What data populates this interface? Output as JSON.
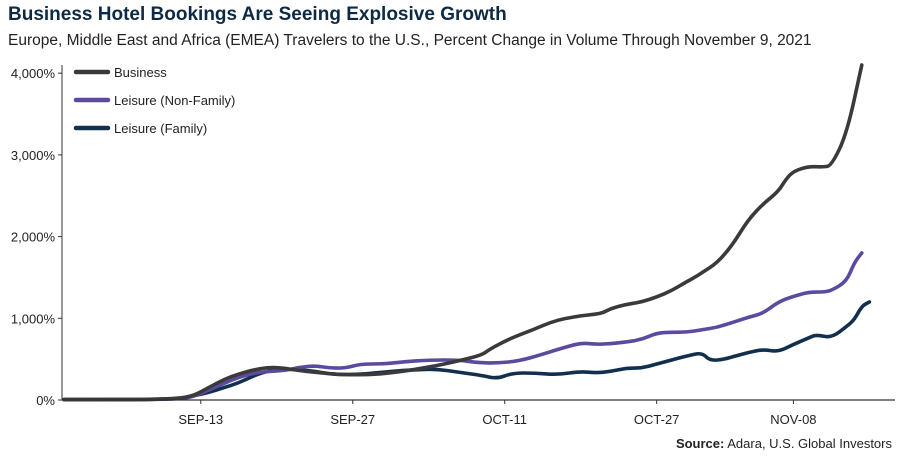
{
  "title": "Business Hotel Bookings Are Seeing Explosive Growth",
  "subtitle": "Europe, Middle East and Africa (EMEA) Travelers to the U.S., Percent Change in Volume Through November 9, 2021",
  "source_label": "Source:",
  "source_text": "Adara, U.S. Global Investors",
  "colors": {
    "business": "#3a3a3a",
    "leisure_non_family": "#5b4a9e",
    "leisure_family": "#12304d",
    "axis": "#333333"
  },
  "chart_data": {
    "type": "line",
    "title": "Business Hotel Bookings Are Seeing Explosive Growth",
    "xlabel": "",
    "ylabel": "Percent Change in Volume",
    "ylim": [
      0,
      4100
    ],
    "xlim": [
      0,
      99
    ],
    "x_ticks": [
      {
        "label": "SEP-13",
        "x": 18
      },
      {
        "label": "SEP-27",
        "x": 38
      },
      {
        "label": "OCT-11",
        "x": 58
      },
      {
        "label": "OCT-27",
        "x": 78
      },
      {
        "label": "NOV-08",
        "x": 96
      }
    ],
    "y_ticks": [
      {
        "label": "0%",
        "value": 0
      },
      {
        "label": "1,000%",
        "value": 1000
      },
      {
        "label": "2,000%",
        "value": 2000
      },
      {
        "label": "3,000%",
        "value": 3000
      },
      {
        "label": "4,000%",
        "value": 4000
      }
    ],
    "legend_position": "top-left",
    "series": [
      {
        "name": "Business",
        "color": "#3a3a3a",
        "points": [
          [
            0,
            5
          ],
          [
            10,
            5
          ],
          [
            12,
            10
          ],
          [
            15,
            20
          ],
          [
            17,
            50
          ],
          [
            19,
            150
          ],
          [
            21,
            250
          ],
          [
            23,
            320
          ],
          [
            25,
            370
          ],
          [
            27,
            400
          ],
          [
            29,
            390
          ],
          [
            31,
            360
          ],
          [
            33,
            340
          ],
          [
            35,
            320
          ],
          [
            37,
            310
          ],
          [
            40,
            310
          ],
          [
            43,
            330
          ],
          [
            46,
            370
          ],
          [
            49,
            420
          ],
          [
            52,
            480
          ],
          [
            55,
            550
          ],
          [
            56,
            620
          ],
          [
            58,
            720
          ],
          [
            60,
            800
          ],
          [
            62,
            870
          ],
          [
            64,
            950
          ],
          [
            66,
            1000
          ],
          [
            68,
            1030
          ],
          [
            70,
            1050
          ],
          [
            71,
            1070
          ],
          [
            72,
            1120
          ],
          [
            74,
            1170
          ],
          [
            76,
            1200
          ],
          [
            78,
            1260
          ],
          [
            80,
            1340
          ],
          [
            82,
            1450
          ],
          [
            83,
            1500
          ],
          [
            84,
            1560
          ],
          [
            86,
            1680
          ],
          [
            88,
            1900
          ],
          [
            90,
            2200
          ],
          [
            92,
            2400
          ],
          [
            94,
            2550
          ],
          [
            95,
            2700
          ],
          [
            96,
            2800
          ],
          [
            98,
            2860
          ],
          [
            100,
            2850
          ],
          [
            101,
            2870
          ],
          [
            103,
            3250
          ],
          [
            105,
            4100
          ]
        ]
      },
      {
        "name": "Leisure (Non-Family)",
        "color": "#5b4a9e",
        "points": [
          [
            0,
            5
          ],
          [
            15,
            10
          ],
          [
            17,
            40
          ],
          [
            19,
            120
          ],
          [
            21,
            200
          ],
          [
            23,
            280
          ],
          [
            25,
            330
          ],
          [
            27,
            350
          ],
          [
            29,
            360
          ],
          [
            31,
            400
          ],
          [
            33,
            420
          ],
          [
            35,
            390
          ],
          [
            37,
            390
          ],
          [
            39,
            440
          ],
          [
            42,
            440
          ],
          [
            45,
            470
          ],
          [
            48,
            490
          ],
          [
            52,
            490
          ],
          [
            54,
            460
          ],
          [
            57,
            450
          ],
          [
            60,
            480
          ],
          [
            63,
            560
          ],
          [
            65,
            620
          ],
          [
            68,
            700
          ],
          [
            70,
            680
          ],
          [
            72,
            690
          ],
          [
            74,
            710
          ],
          [
            76,
            740
          ],
          [
            78,
            820
          ],
          [
            80,
            830
          ],
          [
            82,
            830
          ],
          [
            84,
            860
          ],
          [
            86,
            890
          ],
          [
            88,
            950
          ],
          [
            90,
            1010
          ],
          [
            92,
            1060
          ],
          [
            94,
            1200
          ],
          [
            96,
            1270
          ],
          [
            98,
            1320
          ],
          [
            100,
            1320
          ],
          [
            101,
            1340
          ],
          [
            103,
            1450
          ],
          [
            104,
            1680
          ],
          [
            105,
            1800
          ]
        ]
      },
      {
        "name": "Leisure (Family)",
        "color": "#12304d",
        "points": [
          [
            0,
            5
          ],
          [
            15,
            5
          ],
          [
            17,
            50
          ],
          [
            19,
            90
          ],
          [
            21,
            150
          ],
          [
            23,
            210
          ],
          [
            25,
            300
          ],
          [
            27,
            360
          ],
          [
            29,
            380
          ],
          [
            31,
            370
          ],
          [
            33,
            350
          ],
          [
            35,
            320
          ],
          [
            37,
            310
          ],
          [
            40,
            320
          ],
          [
            43,
            350
          ],
          [
            46,
            370
          ],
          [
            49,
            380
          ],
          [
            52,
            340
          ],
          [
            55,
            300
          ],
          [
            57,
            260
          ],
          [
            59,
            330
          ],
          [
            62,
            330
          ],
          [
            65,
            310
          ],
          [
            68,
            350
          ],
          [
            70,
            330
          ],
          [
            72,
            350
          ],
          [
            74,
            390
          ],
          [
            76,
            390
          ],
          [
            78,
            440
          ],
          [
            80,
            490
          ],
          [
            82,
            540
          ],
          [
            84,
            580
          ],
          [
            85,
            480
          ],
          [
            87,
            500
          ],
          [
            88,
            530
          ],
          [
            90,
            580
          ],
          [
            92,
            620
          ],
          [
            94,
            590
          ],
          [
            96,
            680
          ],
          [
            98,
            760
          ],
          [
            99,
            800
          ],
          [
            101,
            760
          ],
          [
            103,
            900
          ],
          [
            104,
            980
          ],
          [
            105,
            1150
          ],
          [
            106,
            1200
          ]
        ]
      }
    ]
  }
}
